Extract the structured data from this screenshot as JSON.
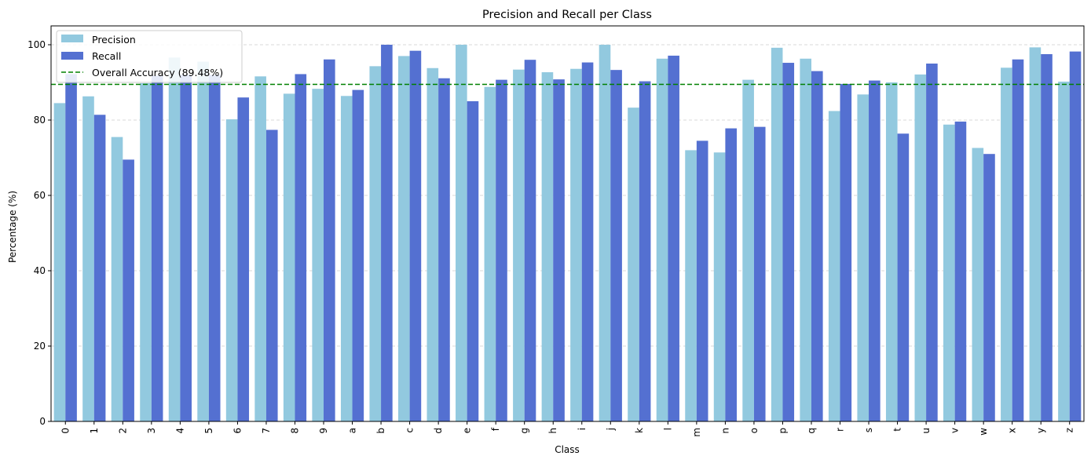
{
  "chart_data": {
    "type": "bar",
    "title": "Precision and Recall per Class",
    "xlabel": "Class",
    "ylabel": "Percentage (%)",
    "ylim": [
      0,
      105
    ],
    "yticks": [
      0,
      20,
      40,
      60,
      80,
      100
    ],
    "grid": "y-dashed",
    "legend_position": "top-left",
    "categories": [
      "0",
      "1",
      "2",
      "3",
      "4",
      "5",
      "6",
      "7",
      "8",
      "9",
      "a",
      "b",
      "c",
      "d",
      "e",
      "f",
      "g",
      "h",
      "i",
      "j",
      "k",
      "l",
      "m",
      "n",
      "o",
      "p",
      "q",
      "r",
      "s",
      "t",
      "u",
      "v",
      "w",
      "x",
      "y",
      "z"
    ],
    "series": [
      {
        "name": "Precision",
        "color": "#92C9DF",
        "values": [
          84.5,
          86.3,
          75.5,
          89.8,
          96.6,
          95.5,
          80.2,
          91.6,
          87.0,
          88.3,
          86.4,
          94.3,
          97.0,
          93.8,
          100.0,
          88.8,
          93.4,
          92.7,
          93.6,
          100.0,
          83.3,
          96.3,
          72.0,
          71.4,
          90.7,
          99.2,
          96.3,
          82.4,
          86.8,
          90.0,
          92.1,
          78.8,
          72.6,
          93.9,
          99.3,
          90.2
        ]
      },
      {
        "name": "Recall",
        "color": "#5470D1",
        "values": [
          92.2,
          81.4,
          69.5,
          91.8,
          92.0,
          92.0,
          86.0,
          77.4,
          92.2,
          96.1,
          88.0,
          100.0,
          98.4,
          91.1,
          85.0,
          90.7,
          96.0,
          90.8,
          95.3,
          93.3,
          90.3,
          97.1,
          74.5,
          77.8,
          78.2,
          95.2,
          93.0,
          89.6,
          90.5,
          76.4,
          95.0,
          79.6,
          71.0,
          96.1,
          97.5,
          98.2
        ]
      }
    ],
    "reference_line": {
      "label": "Overall Accuracy (89.48%)",
      "value": 89.48,
      "color": "#008000",
      "style": "dashed"
    }
  }
}
